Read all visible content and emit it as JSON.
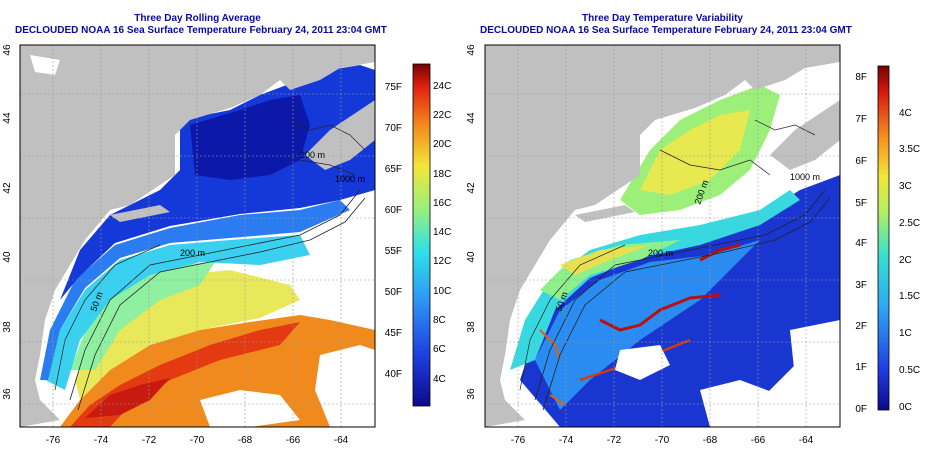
{
  "left_panel": {
    "title": "Three Day Rolling Average",
    "subtitle": "DECLOUDED NOAA 16 Sea Surface Temperature February 24, 2011 23:04 GMT",
    "x_ticks": [
      "-76",
      "-74",
      "-72",
      "-70",
      "-68",
      "-66",
      "-64"
    ],
    "y_ticks": [
      "36",
      "38",
      "40",
      "42",
      "44",
      "46"
    ],
    "contour_labels": [
      "200 m",
      "1000 m",
      "200 m",
      "50 m"
    ],
    "colorbar_f": [
      "75F",
      "70F",
      "65F",
      "60F",
      "55F",
      "50F",
      "45F",
      "40F"
    ],
    "colorbar_c": [
      "24C",
      "22C",
      "20C",
      "18C",
      "16C",
      "14C",
      "12C",
      "10C",
      "8C",
      "6C",
      "4C"
    ]
  },
  "right_panel": {
    "title": "Three Day Temperature Variability",
    "subtitle": "DECLOUDED NOAA 16 Sea Surface Temperature February 24, 2011 23:04 GMT",
    "x_ticks": [
      "-76",
      "-74",
      "-72",
      "-70",
      "-68",
      "-66",
      "-64"
    ],
    "y_ticks": [
      "36",
      "38",
      "40",
      "42",
      "44",
      "46"
    ],
    "contour_labels": [
      "200 m",
      "1000 m",
      "200 m",
      "50 m"
    ],
    "colorbar_f": [
      "8F",
      "7F",
      "6F",
      "5F",
      "4F",
      "3F",
      "2F",
      "1F",
      "0F"
    ],
    "colorbar_c": [
      "4C",
      "3.5C",
      "3C",
      "2.5C",
      "2C",
      "1.5C",
      "1C",
      "0.5C",
      "0C"
    ]
  },
  "colors": {
    "title": "#0a0aa0",
    "land": "#c0c0c0",
    "cloud": "#ffffff"
  }
}
